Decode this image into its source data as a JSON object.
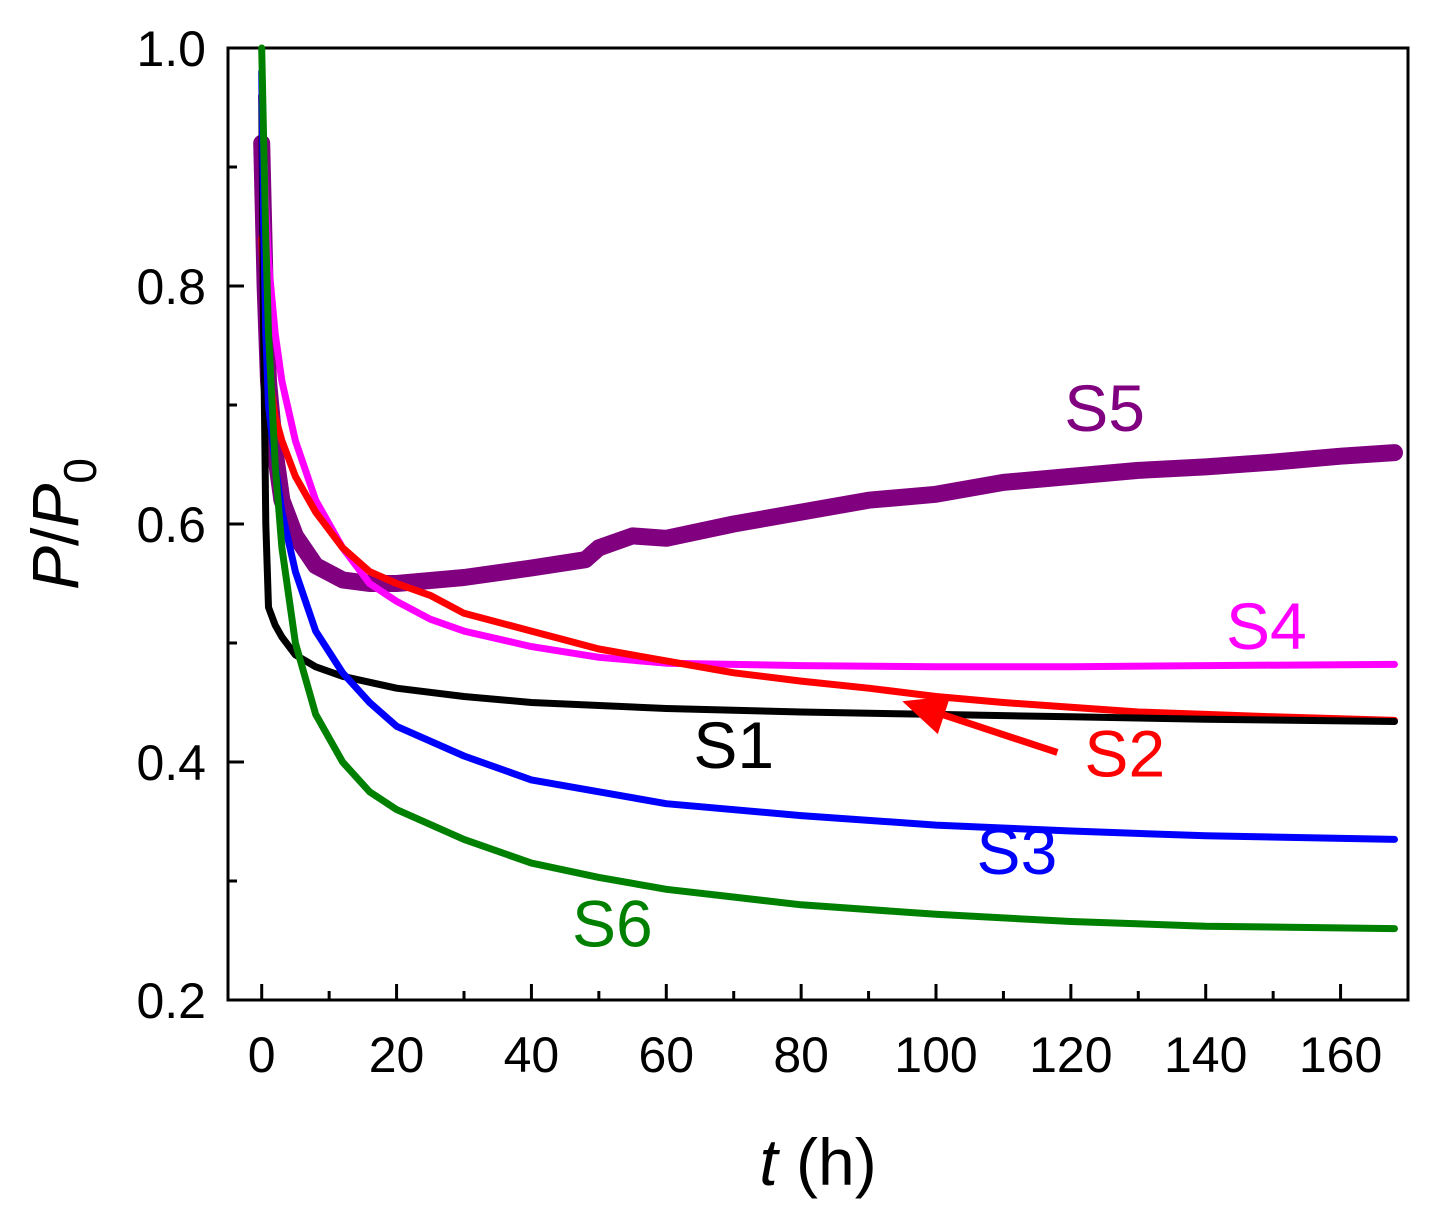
{
  "chart_data": {
    "type": "line",
    "title": "",
    "xlabel": {
      "var": "t",
      "unit": " (h)"
    },
    "ylabel": {
      "p": "P",
      "slash": "/",
      "p0": "P",
      "sub": "0"
    },
    "xlim": [
      -5,
      170
    ],
    "ylim": [
      0.2,
      1.0
    ],
    "xticks": [
      0,
      20,
      40,
      60,
      80,
      100,
      120,
      140,
      160
    ],
    "xtick_labels": [
      "0",
      "20",
      "40",
      "60",
      "80",
      "100",
      "120",
      "140",
      "160"
    ],
    "yticks": [
      0.2,
      0.4,
      0.6,
      0.8,
      1.0
    ],
    "ytick_labels": [
      "0.2",
      "0.4",
      "0.6",
      "0.8",
      "1.0"
    ],
    "grid": false,
    "legend": "inline labels",
    "series": [
      {
        "name": "S1",
        "color": "#000000",
        "x": [
          0,
          0.3,
          0.6,
          1,
          2,
          3,
          5,
          8,
          12,
          20,
          30,
          40,
          60,
          80,
          100,
          120,
          140,
          168
        ],
        "y": [
          0.96,
          0.75,
          0.6,
          0.53,
          0.515,
          0.505,
          0.49,
          0.48,
          0.472,
          0.462,
          0.455,
          0.45,
          0.445,
          0.442,
          0.44,
          0.438,
          0.436,
          0.434
        ]
      },
      {
        "name": "S2",
        "color": "#ff0000",
        "x": [
          0,
          0.5,
          1,
          2,
          3,
          5,
          8,
          12,
          16,
          20,
          25,
          30,
          40,
          50,
          60,
          70,
          80,
          90,
          100,
          110,
          120,
          130,
          140,
          150,
          168
        ],
        "y": [
          0.84,
          0.77,
          0.73,
          0.69,
          0.67,
          0.64,
          0.61,
          0.58,
          0.56,
          0.55,
          0.54,
          0.525,
          0.51,
          0.495,
          0.485,
          0.475,
          0.468,
          0.462,
          0.455,
          0.45,
          0.446,
          0.442,
          0.44,
          0.438,
          0.435
        ]
      },
      {
        "name": "S3",
        "color": "#0000ff",
        "x": [
          0,
          0.3,
          0.6,
          1,
          2,
          3,
          5,
          8,
          12,
          16,
          20,
          30,
          40,
          50,
          60,
          80,
          100,
          120,
          140,
          168
        ],
        "y": [
          0.98,
          0.85,
          0.76,
          0.7,
          0.65,
          0.61,
          0.56,
          0.51,
          0.475,
          0.45,
          0.43,
          0.405,
          0.385,
          0.375,
          0.365,
          0.355,
          0.347,
          0.342,
          0.338,
          0.335
        ]
      },
      {
        "name": "S4",
        "color": "#ff00ff",
        "x": [
          0,
          0.5,
          1,
          2,
          3,
          5,
          8,
          12,
          16,
          20,
          25,
          30,
          40,
          50,
          60,
          80,
          100,
          120,
          140,
          168
        ],
        "y": [
          0.96,
          0.88,
          0.82,
          0.76,
          0.72,
          0.67,
          0.62,
          0.58,
          0.55,
          0.535,
          0.52,
          0.51,
          0.497,
          0.488,
          0.483,
          0.481,
          0.48,
          0.48,
          0.481,
          0.482
        ]
      },
      {
        "name": "S5",
        "color": "#800080",
        "x": [
          0,
          0.5,
          1,
          2,
          3,
          5,
          8,
          12,
          16,
          20,
          30,
          40,
          48,
          50,
          55,
          60,
          70,
          80,
          90,
          100,
          110,
          120,
          130,
          140,
          150,
          160,
          168
        ],
        "y": [
          0.92,
          0.8,
          0.72,
          0.66,
          0.62,
          0.59,
          0.565,
          0.553,
          0.55,
          0.55,
          0.555,
          0.563,
          0.57,
          0.58,
          0.59,
          0.588,
          0.6,
          0.61,
          0.62,
          0.625,
          0.635,
          0.64,
          0.645,
          0.648,
          0.652,
          0.657,
          0.66
        ]
      },
      {
        "name": "S6",
        "color": "#008000",
        "x": [
          0,
          0.3,
          0.6,
          1,
          2,
          3,
          5,
          8,
          12,
          16,
          20,
          30,
          40,
          50,
          60,
          80,
          100,
          120,
          140,
          168
        ],
        "y": [
          1.0,
          0.92,
          0.84,
          0.76,
          0.65,
          0.58,
          0.5,
          0.44,
          0.4,
          0.375,
          0.36,
          0.335,
          0.315,
          0.303,
          0.293,
          0.28,
          0.272,
          0.266,
          0.262,
          0.26
        ]
      }
    ],
    "annotations": [
      {
        "text": "S1",
        "color": "#000000",
        "x": 70,
        "y": 0.395
      },
      {
        "text": "S2",
        "color": "#ff0000",
        "x": 128,
        "y": 0.388
      },
      {
        "text": "S3",
        "color": "#0000ff",
        "x": 112,
        "y": 0.306
      },
      {
        "text": "S4",
        "color": "#ff00ff",
        "x": 149,
        "y": 0.495
      },
      {
        "text": "S5",
        "color": "#800080",
        "x": 125,
        "y": 0.678
      },
      {
        "text": "S6",
        "color": "#008000",
        "x": 52,
        "y": 0.245
      }
    ],
    "arrow": {
      "color": "#ff0000",
      "from": [
        118,
        0.408
      ],
      "to": [
        95,
        0.451
      ]
    }
  }
}
